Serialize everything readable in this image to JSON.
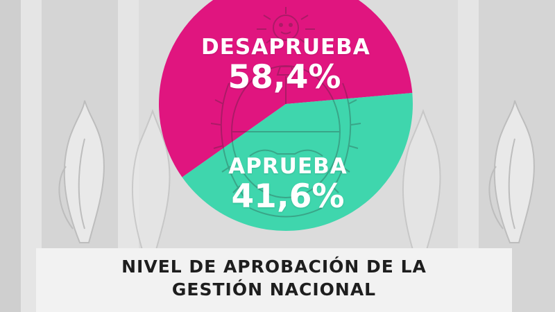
{
  "chart_data": {
    "type": "pie",
    "title_lines": [
      "NIVEL DE APROBACIÓN DE LA",
      "GESTIÓN NACIONAL"
    ],
    "slices": [
      {
        "label": "DESAPRUEBA",
        "value": 58.4,
        "value_label": "58,4%",
        "color": "#e0157f"
      },
      {
        "label": "APRUEBA",
        "value": 41.6,
        "value_label": "41,6%",
        "color": "#3fd6ad"
      }
    ],
    "legend": "none",
    "grid": false
  },
  "colors": {
    "background": "#d9d9d9",
    "banner": "#f2f2f2",
    "title_text": "#1e1e1e",
    "label_text": "#ffffff"
  },
  "decorations": [
    "argentine-coat-of-arms-watermark",
    "sun-of-may-icon",
    "laurel-wreath-icon",
    "flower-bud-icon"
  ]
}
